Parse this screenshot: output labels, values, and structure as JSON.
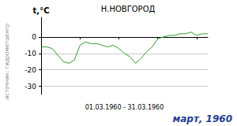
{
  "chart_data": {
    "type": "line",
    "title": "Н.НОВГОРОД",
    "y_label": "t,°C",
    "x_label": "01.03.1960 - 31.03.1960",
    "annotations": [
      "источник: гидрометцентр",
      "март, 1960"
    ],
    "x": [
      1,
      2,
      3,
      4,
      5,
      6,
      7,
      8,
      9,
      10,
      11,
      12,
      13,
      14,
      15,
      16,
      17,
      18,
      19,
      20,
      21,
      22,
      23,
      24,
      25,
      26,
      27,
      28,
      29,
      30,
      31
    ],
    "values": [
      -6,
      -6,
      -7,
      -11,
      -15,
      -16,
      -14,
      -5,
      -3,
      -4,
      -4,
      -5,
      -6,
      -5,
      -7,
      -10,
      -12,
      -16,
      -13,
      -9,
      -6,
      -1,
      0,
      1,
      1,
      2,
      2,
      3,
      1,
      2,
      2
    ],
    "color": "#2e9e2e",
    "xlim": [
      1,
      31
    ],
    "xticks": [
      1,
      8,
      15,
      22,
      29
    ],
    "ylim": [
      -35,
      12
    ],
    "yticks": [
      -30,
      -20,
      -10,
      0
    ],
    "grid": true,
    "tick_labels": "y"
  }
}
